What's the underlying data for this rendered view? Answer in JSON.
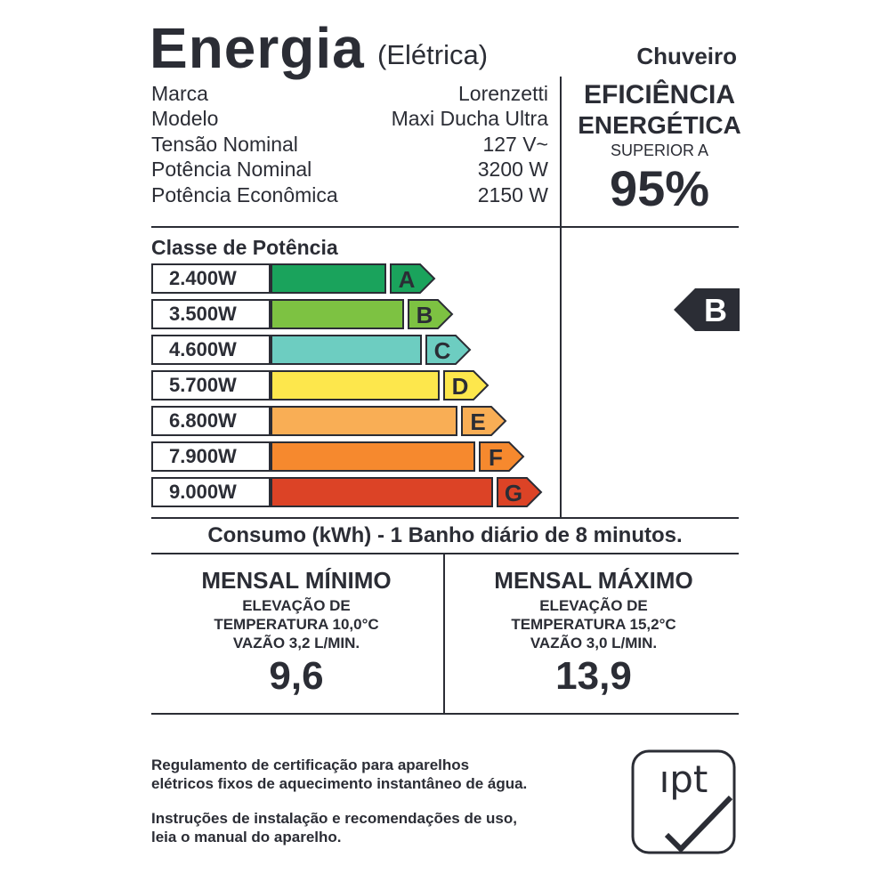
{
  "header": {
    "title": "Energia",
    "subtitle": "(Elétrica)",
    "product": "Chuveiro"
  },
  "specs": [
    {
      "label": "Marca",
      "value": "Lorenzetti"
    },
    {
      "label": "Modelo",
      "value": "Maxi Ducha Ultra"
    },
    {
      "label": "Tensão Nominal",
      "value": "127 V~"
    },
    {
      "label": "Potência Nominal",
      "value": "3200 W"
    },
    {
      "label": "Potência Econômica",
      "value": "2150 W"
    }
  ],
  "efficiency": {
    "line1": "EFICIÊNCIA",
    "line2": "ENERGÉTICA",
    "line3": "SUPERIOR A",
    "value": "95%"
  },
  "classes": {
    "title": "Classe de Potência",
    "bars": [
      {
        "label": "2.400W",
        "letter": "A",
        "color": "#1aa35c"
      },
      {
        "label": "3.500W",
        "letter": "B",
        "color": "#7dc242"
      },
      {
        "label": "4.600W",
        "letter": "C",
        "color": "#6dcdc1"
      },
      {
        "label": "5.700W",
        "letter": "D",
        "color": "#fde74c"
      },
      {
        "label": "6.800W",
        "letter": "E",
        "color": "#f9ae55"
      },
      {
        "label": "7.900W",
        "letter": "F",
        "color": "#f6892e"
      },
      {
        "label": "9.000W",
        "letter": "G",
        "color": "#dc4326"
      }
    ],
    "selected": "B"
  },
  "consumo": {
    "title": "Consumo (kWh) - 1 Banho diário de 8 minutos.",
    "minimo": {
      "head": "MENSAL MÍNIMO",
      "line1": "ELEVAÇÃO DE",
      "line2": "TEMPERATURA 10,0°C",
      "line3": "VAZÃO 3,2 L/MIN.",
      "value": "9,6"
    },
    "maximo": {
      "head": "MENSAL MÁXIMO",
      "line1": "ELEVAÇÃO DE",
      "line2": "TEMPERATURA 15,2°C",
      "line3": "VAZÃO 3,0 L/MIN.",
      "value": "13,9"
    }
  },
  "footer": {
    "regulamento1": "Regulamento de certificação para aparelhos",
    "regulamento2": "elétricos fixos de aquecimento instantâneo de água.",
    "instrucoes1": "Instruções de instalação e recomendações de uso,",
    "instrucoes2": "leia o manual do aparelho.",
    "logo_text": "ıpt"
  }
}
